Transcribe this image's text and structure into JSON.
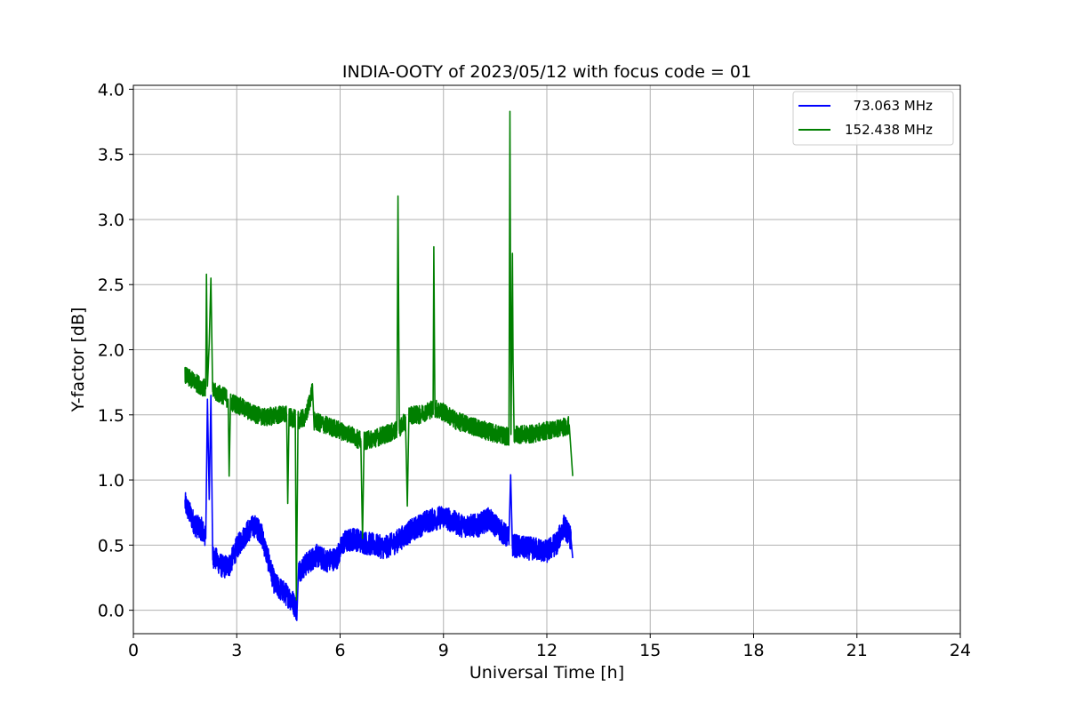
{
  "chart_data": {
    "type": "line",
    "title": "INDIA-OOTY of 2023/05/12 with focus code = 01",
    "xlabel": "Universal Time [h]",
    "ylabel": "Y-factor [dB]",
    "xlim": [
      0,
      24
    ],
    "ylim": [
      -0.18,
      4.03
    ],
    "xticks": [
      0,
      3,
      6,
      9,
      12,
      15,
      18,
      21,
      24
    ],
    "xtick_labels": [
      "0",
      "3",
      "6",
      "9",
      "12",
      "15",
      "18",
      "21",
      "24"
    ],
    "yticks": [
      0.0,
      0.5,
      1.0,
      1.5,
      2.0,
      2.5,
      3.0,
      3.5,
      4.0
    ],
    "ytick_labels": [
      "0.0",
      "0.5",
      "1.0",
      "1.5",
      "2.0",
      "2.5",
      "3.0",
      "3.5",
      "4.0"
    ],
    "grid": true,
    "legend_position": "top-right",
    "series": [
      {
        "name": "  73.063 MHz",
        "color": "#0000ff",
        "noise": 0.09,
        "points": [
          [
            1.5,
            0.82
          ],
          [
            1.8,
            0.65
          ],
          [
            2.0,
            0.62
          ],
          [
            2.1,
            0.55
          ],
          [
            2.15,
            1.62
          ],
          [
            2.2,
            0.85
          ],
          [
            2.25,
            1.65
          ],
          [
            2.3,
            0.42
          ],
          [
            2.6,
            0.33
          ],
          [
            2.8,
            0.35
          ],
          [
            3.0,
            0.48
          ],
          [
            3.3,
            0.6
          ],
          [
            3.5,
            0.65
          ],
          [
            3.7,
            0.6
          ],
          [
            3.9,
            0.4
          ],
          [
            4.1,
            0.2
          ],
          [
            4.4,
            0.13
          ],
          [
            4.6,
            0.08
          ],
          [
            4.75,
            0.0
          ],
          [
            4.8,
            0.3
          ],
          [
            5.0,
            0.35
          ],
          [
            5.3,
            0.42
          ],
          [
            5.6,
            0.38
          ],
          [
            5.9,
            0.4
          ],
          [
            6.1,
            0.52
          ],
          [
            6.4,
            0.55
          ],
          [
            6.7,
            0.52
          ],
          [
            7.0,
            0.5
          ],
          [
            7.3,
            0.48
          ],
          [
            7.6,
            0.52
          ],
          [
            8.0,
            0.6
          ],
          [
            8.5,
            0.68
          ],
          [
            9.0,
            0.72
          ],
          [
            9.5,
            0.65
          ],
          [
            10.0,
            0.65
          ],
          [
            10.3,
            0.7
          ],
          [
            10.6,
            0.63
          ],
          [
            10.9,
            0.55
          ],
          [
            10.95,
            1.04
          ],
          [
            11.0,
            0.5
          ],
          [
            11.3,
            0.48
          ],
          [
            11.7,
            0.47
          ],
          [
            12.0,
            0.45
          ],
          [
            12.3,
            0.52
          ],
          [
            12.5,
            0.65
          ],
          [
            12.7,
            0.55
          ],
          [
            12.75,
            0.4
          ]
        ]
      },
      {
        "name": "152.438 MHz",
        "color": "#007f00",
        "noise": 0.07,
        "points": [
          [
            1.5,
            1.8
          ],
          [
            1.8,
            1.75
          ],
          [
            2.1,
            1.7
          ],
          [
            2.12,
            2.58
          ],
          [
            2.15,
            1.72
          ],
          [
            2.2,
            2.05
          ],
          [
            2.25,
            2.55
          ],
          [
            2.3,
            1.68
          ],
          [
            2.6,
            1.65
          ],
          [
            2.75,
            1.62
          ],
          [
            2.78,
            1.03
          ],
          [
            2.82,
            1.6
          ],
          [
            3.0,
            1.58
          ],
          [
            3.4,
            1.52
          ],
          [
            3.8,
            1.48
          ],
          [
            4.2,
            1.5
          ],
          [
            4.45,
            1.5
          ],
          [
            4.48,
            0.82
          ],
          [
            4.52,
            1.48
          ],
          [
            4.7,
            1.47
          ],
          [
            4.73,
            0.08
          ],
          [
            4.78,
            1.46
          ],
          [
            5.0,
            1.48
          ],
          [
            5.2,
            1.7
          ],
          [
            5.25,
            1.45
          ],
          [
            5.6,
            1.42
          ],
          [
            6.0,
            1.38
          ],
          [
            6.3,
            1.35
          ],
          [
            6.6,
            1.3
          ],
          [
            6.65,
            0.55
          ],
          [
            6.7,
            1.3
          ],
          [
            7.0,
            1.32
          ],
          [
            7.3,
            1.35
          ],
          [
            7.65,
            1.38
          ],
          [
            7.68,
            3.18
          ],
          [
            7.72,
            1.4
          ],
          [
            7.9,
            1.45
          ],
          [
            7.95,
            0.8
          ],
          [
            8.0,
            1.5
          ],
          [
            8.3,
            1.5
          ],
          [
            8.7,
            1.55
          ],
          [
            8.72,
            2.79
          ],
          [
            8.75,
            1.55
          ],
          [
            9.0,
            1.52
          ],
          [
            9.4,
            1.45
          ],
          [
            9.8,
            1.42
          ],
          [
            10.2,
            1.38
          ],
          [
            10.6,
            1.35
          ],
          [
            10.9,
            1.33
          ],
          [
            10.93,
            3.83
          ],
          [
            10.96,
            1.35
          ],
          [
            11.0,
            2.74
          ],
          [
            11.02,
            1.9
          ],
          [
            11.05,
            1.35
          ],
          [
            11.5,
            1.35
          ],
          [
            12.0,
            1.38
          ],
          [
            12.4,
            1.4
          ],
          [
            12.65,
            1.42
          ],
          [
            12.75,
            1.03
          ]
        ]
      }
    ]
  }
}
